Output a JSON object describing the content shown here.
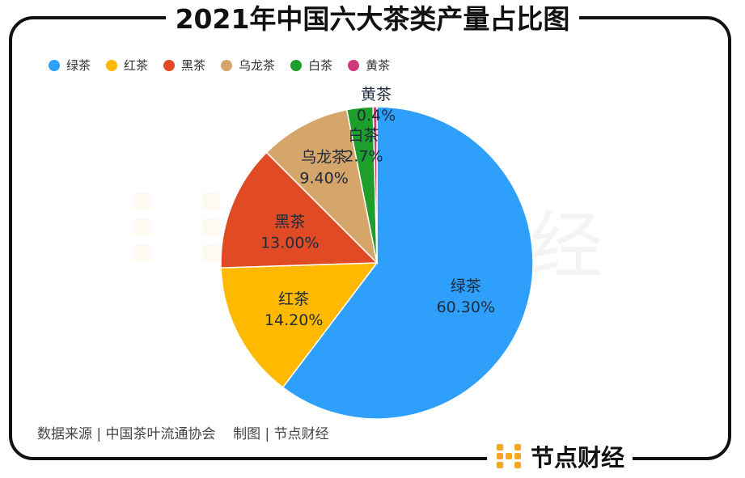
{
  "title": "2021年中国六大茶类产量占比图",
  "source_text": "数据来源 | 中国茶叶流通协会    制图 | 节点财经",
  "brand": "节点财经",
  "watermark": "经",
  "colors": {
    "frame": "#111111",
    "brand_orange": "#F5A623"
  },
  "chart_data": {
    "type": "pie",
    "title": "2021年中国六大茶类产量占比图",
    "legend_position": "top-left",
    "categories": [
      "绿茶",
      "红茶",
      "黑茶",
      "乌龙茶",
      "白茶",
      "黄茶"
    ],
    "values": [
      60.3,
      14.2,
      13.0,
      9.4,
      2.7,
      0.4
    ],
    "value_labels": [
      "60.30%",
      "14.20%",
      "13.00%",
      "9.40%",
      "2.7%",
      "0.4%"
    ],
    "colors": [
      "#2E9FFA",
      "#FFB900",
      "#E04B25",
      "#D6A56A",
      "#1E9E2A",
      "#D13A7A"
    ]
  }
}
